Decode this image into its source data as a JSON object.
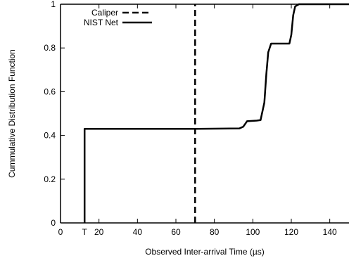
{
  "chart_data": {
    "type": "line",
    "xlabel": "Observed Inter-arrival Time (µs)",
    "ylabel": "Cummulative Distribution Function",
    "xlim": [
      0,
      150
    ],
    "ylim": [
      0,
      1
    ],
    "x_ticks": [
      0,
      20,
      40,
      60,
      80,
      100,
      120,
      140
    ],
    "x_tick_labels": [
      "0",
      "20",
      "40",
      "60",
      "80",
      "100",
      "120",
      "140"
    ],
    "x_extra_tick": {
      "value": 12.5,
      "label": "T"
    },
    "y_ticks": [
      0,
      0.2,
      0.4,
      0.6,
      0.8,
      1
    ],
    "y_tick_labels": [
      "0",
      "0.2",
      "0.4",
      "0.6",
      "0.8",
      "1"
    ],
    "grid": false,
    "legend_position": "top-left",
    "series": [
      {
        "name": "Caliper",
        "style": "dashed",
        "color": "#000000",
        "points": [
          [
            70,
            0
          ],
          [
            70,
            1
          ]
        ]
      },
      {
        "name": "NIST Net",
        "style": "solid",
        "color": "#000000",
        "points": [
          [
            12.5,
            0
          ],
          [
            12.5,
            0.43
          ],
          [
            70,
            0.43
          ],
          [
            93,
            0.432
          ],
          [
            95,
            0.44
          ],
          [
            97,
            0.465
          ],
          [
            102,
            0.468
          ],
          [
            104,
            0.47
          ],
          [
            106,
            0.55
          ],
          [
            107,
            0.68
          ],
          [
            108,
            0.78
          ],
          [
            109.5,
            0.82
          ],
          [
            119,
            0.82
          ],
          [
            120,
            0.86
          ],
          [
            121,
            0.95
          ],
          [
            122,
            0.99
          ],
          [
            124,
            1
          ],
          [
            150,
            1
          ]
        ]
      }
    ]
  }
}
